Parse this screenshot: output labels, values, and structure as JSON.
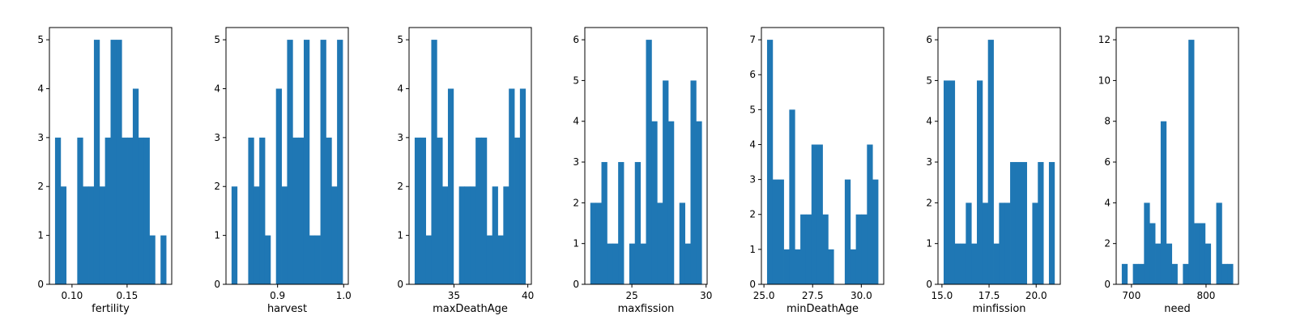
{
  "colors": {
    "bar": "#1f77b4",
    "axis": "#000000",
    "background": "#ffffff"
  },
  "chart_data": [
    {
      "type": "bar",
      "xlabel": "fertility",
      "xlim": [
        0.0795,
        0.1905
      ],
      "ylim": [
        0,
        5.25
      ],
      "xticks": [
        {
          "v": 0.1,
          "label": "0.10"
        },
        {
          "v": 0.15,
          "label": "0.15"
        }
      ],
      "yticks": [
        {
          "v": 0,
          "label": "0"
        },
        {
          "v": 1,
          "label": "1"
        },
        {
          "v": 2,
          "label": "2"
        },
        {
          "v": 3,
          "label": "3"
        },
        {
          "v": 4,
          "label": "4"
        },
        {
          "v": 5,
          "label": "5"
        }
      ],
      "bin_start": 0.0846,
      "bin_width": 0.00504,
      "values": [
        3,
        2,
        0,
        0,
        3,
        2,
        2,
        5,
        2,
        3,
        5,
        5,
        3,
        3,
        4,
        3,
        3,
        1,
        0,
        1
      ]
    },
    {
      "type": "bar",
      "xlabel": "harvest",
      "xlim": [
        0.822,
        1.007
      ],
      "ylim": [
        0,
        5.25
      ],
      "xticks": [
        {
          "v": 0.9,
          "label": "0.9"
        },
        {
          "v": 1.0,
          "label": "1.0"
        }
      ],
      "yticks": [
        {
          "v": 0,
          "label": "0"
        },
        {
          "v": 1,
          "label": "1"
        },
        {
          "v": 2,
          "label": "2"
        },
        {
          "v": 3,
          "label": "3"
        },
        {
          "v": 4,
          "label": "4"
        },
        {
          "v": 5,
          "label": "5"
        }
      ],
      "bin_start": 0.8304,
      "bin_width": 0.0084,
      "values": [
        2,
        0,
        0,
        3,
        2,
        3,
        1,
        0,
        4,
        2,
        5,
        3,
        3,
        5,
        1,
        1,
        5,
        3,
        2,
        5
      ]
    },
    {
      "type": "bar",
      "xlabel": "maxDeathAge",
      "xlim": [
        31.96,
        40.24
      ],
      "ylim": [
        0,
        5.25
      ],
      "xticks": [
        {
          "v": 35,
          "label": "35"
        },
        {
          "v": 40,
          "label": "40"
        }
      ],
      "yticks": [
        {
          "v": 0,
          "label": "0"
        },
        {
          "v": 1,
          "label": "1"
        },
        {
          "v": 2,
          "label": "2"
        },
        {
          "v": 3,
          "label": "3"
        },
        {
          "v": 4,
          "label": "4"
        },
        {
          "v": 5,
          "label": "5"
        }
      ],
      "bin_start": 32.34,
      "bin_width": 0.375,
      "values": [
        3,
        3,
        1,
        5,
        3,
        2,
        4,
        0,
        2,
        2,
        2,
        3,
        3,
        1,
        2,
        1,
        2,
        4,
        3,
        4
      ]
    },
    {
      "type": "bar",
      "xlabel": "maxfission",
      "xlim": [
        21.83,
        30.07
      ],
      "ylim": [
        0,
        6.3
      ],
      "xticks": [
        {
          "v": 25,
          "label": "25"
        },
        {
          "v": 30,
          "label": "30"
        }
      ],
      "yticks": [
        {
          "v": 0,
          "label": "0"
        },
        {
          "v": 1,
          "label": "1"
        },
        {
          "v": 2,
          "label": "2"
        },
        {
          "v": 3,
          "label": "3"
        },
        {
          "v": 4,
          "label": "4"
        },
        {
          "v": 5,
          "label": "5"
        },
        {
          "v": 6,
          "label": "6"
        }
      ],
      "bin_start": 22.2,
      "bin_width": 0.375,
      "values": [
        2,
        2,
        3,
        1,
        1,
        3,
        0,
        1,
        3,
        1,
        6,
        4,
        2,
        5,
        4,
        0,
        2,
        1,
        5,
        4
      ]
    },
    {
      "type": "bar",
      "xlabel": "minDeathAge",
      "xlim": [
        24.87,
        31.15
      ],
      "ylim": [
        0,
        7.35
      ],
      "xticks": [
        {
          "v": 25.0,
          "label": "25.0"
        },
        {
          "v": 27.5,
          "label": "27.5"
        },
        {
          "v": 30.0,
          "label": "30.0"
        }
      ],
      "yticks": [
        {
          "v": 0,
          "label": "0"
        },
        {
          "v": 1,
          "label": "1"
        },
        {
          "v": 2,
          "label": "2"
        },
        {
          "v": 3,
          "label": "3"
        },
        {
          "v": 4,
          "label": "4"
        },
        {
          "v": 5,
          "label": "5"
        },
        {
          "v": 6,
          "label": "6"
        },
        {
          "v": 7,
          "label": "7"
        }
      ],
      "bin_start": 25.16,
      "bin_width": 0.285,
      "values": [
        7,
        3,
        3,
        1,
        5,
        1,
        2,
        2,
        4,
        4,
        2,
        1,
        0,
        0,
        3,
        1,
        2,
        2,
        4,
        3
      ]
    },
    {
      "type": "bar",
      "xlabel": "minfission",
      "xlim": [
        14.79,
        21.28
      ],
      "ylim": [
        0,
        6.3
      ],
      "xticks": [
        {
          "v": 15.0,
          "label": "15.0"
        },
        {
          "v": 17.5,
          "label": "17.5"
        },
        {
          "v": 20.0,
          "label": "20.0"
        }
      ],
      "yticks": [
        {
          "v": 0,
          "label": "0"
        },
        {
          "v": 1,
          "label": "1"
        },
        {
          "v": 2,
          "label": "2"
        },
        {
          "v": 3,
          "label": "3"
        },
        {
          "v": 4,
          "label": "4"
        },
        {
          "v": 5,
          "label": "5"
        },
        {
          "v": 6,
          "label": "6"
        }
      ],
      "bin_start": 15.09,
      "bin_width": 0.294,
      "values": [
        5,
        5,
        1,
        1,
        2,
        1,
        5,
        2,
        6,
        1,
        2,
        2,
        3,
        3,
        3,
        0,
        2,
        3,
        0,
        3
      ]
    },
    {
      "type": "bar",
      "xlabel": "need",
      "xlim": [
        679.5,
        843.5
      ],
      "ylim": [
        0,
        12.6
      ],
      "xticks": [
        {
          "v": 700,
          "label": "700"
        },
        {
          "v": 800,
          "label": "800"
        }
      ],
      "yticks": [
        {
          "v": 0,
          "label": "0"
        },
        {
          "v": 2,
          "label": "2"
        },
        {
          "v": 4,
          "label": "4"
        },
        {
          "v": 6,
          "label": "6"
        },
        {
          "v": 8,
          "label": "8"
        },
        {
          "v": 10,
          "label": "10"
        },
        {
          "v": 12,
          "label": "12"
        }
      ],
      "bin_start": 687,
      "bin_width": 7.45,
      "values": [
        1,
        0,
        1,
        1,
        4,
        3,
        2,
        8,
        2,
        1,
        0,
        1,
        12,
        3,
        3,
        2,
        0,
        4,
        1,
        1
      ]
    }
  ]
}
